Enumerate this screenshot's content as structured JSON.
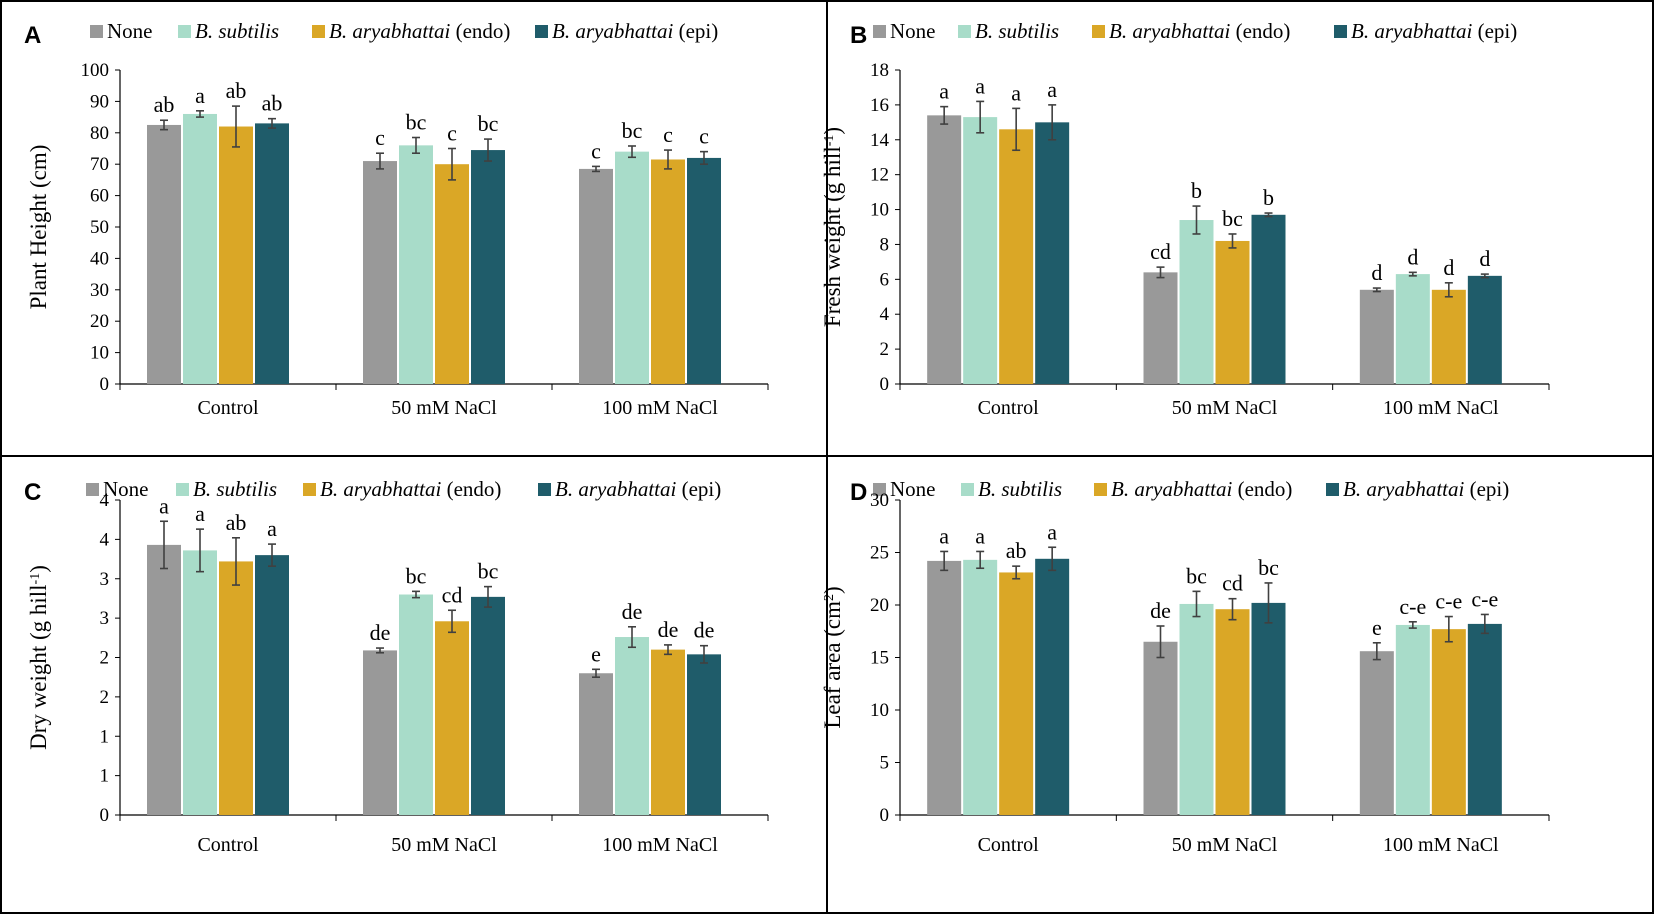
{
  "colors": {
    "None": "#999999",
    "B. subtilis": "#a8dcc9",
    "B. aryabhattai (endo)": "#daa726",
    "B. aryabhattai (epi)": "#1f5c6a"
  },
  "legend": [
    {
      "species": "None",
      "suffix": ""
    },
    {
      "species": "B. subtilis",
      "suffix": ""
    },
    {
      "species": "B. aryabhattai",
      "suffix": " (endo)"
    },
    {
      "species": "B. aryabhattai",
      "suffix": " (epi)"
    }
  ],
  "chart_data": [
    {
      "panel": "A",
      "type": "bar",
      "ylabel": "Plant Height (cm)",
      "ylim": [
        0,
        100
      ],
      "yticks": [
        0,
        10,
        20,
        30,
        40,
        50,
        60,
        70,
        80,
        90,
        100
      ],
      "ytick_labels": [
        "0",
        "10",
        "20",
        "30",
        "40",
        "50",
        "60",
        "70",
        "80",
        "90",
        "100"
      ],
      "categories": [
        "Control",
        "50 mM NaCl",
        "100 mM NaCl"
      ],
      "series": [
        {
          "name": "None",
          "values": [
            82.5,
            71.0,
            68.5
          ],
          "errors": [
            1.5,
            2.5,
            0.8
          ],
          "labels": [
            "ab",
            "c",
            "c"
          ]
        },
        {
          "name": "B. subtilis",
          "values": [
            86.0,
            76.0,
            74.0
          ],
          "errors": [
            1.0,
            2.5,
            1.8
          ],
          "labels": [
            "a",
            "bc",
            "bc"
          ]
        },
        {
          "name": "B. aryabhattai (endo)",
          "values": [
            82.0,
            70.0,
            71.5
          ],
          "errors": [
            6.5,
            5.0,
            3.0
          ],
          "labels": [
            "ab",
            "c",
            "c"
          ]
        },
        {
          "name": "B. aryabhattai (epi)",
          "values": [
            83.0,
            74.5,
            72.0
          ],
          "errors": [
            1.5,
            3.5,
            2.0
          ],
          "labels": [
            "ab",
            "bc",
            "c"
          ]
        }
      ]
    },
    {
      "panel": "B",
      "type": "bar",
      "ylabel": "Fresh weight (g hill",
      "ylabel_sup": "-1",
      "ylabel_end": ")",
      "ylim": [
        0,
        18
      ],
      "yticks": [
        0,
        2,
        4,
        6,
        8,
        10,
        12,
        14,
        16,
        18
      ],
      "ytick_labels": [
        "0",
        "2",
        "4",
        "6",
        "8",
        "10",
        "12",
        "14",
        "16",
        "18"
      ],
      "categories": [
        "Control",
        "50 mM NaCl",
        "100 mM NaCl"
      ],
      "series": [
        {
          "name": "None",
          "values": [
            15.4,
            6.4,
            5.4
          ],
          "errors": [
            0.5,
            0.3,
            0.1
          ],
          "labels": [
            "a",
            "cd",
            "d"
          ]
        },
        {
          "name": "B. subtilis",
          "values": [
            15.3,
            9.4,
            6.3
          ],
          "errors": [
            0.9,
            0.8,
            0.1
          ],
          "labels": [
            "a",
            "b",
            "d"
          ]
        },
        {
          "name": "B. aryabhattai (endo)",
          "values": [
            14.6,
            8.2,
            5.4
          ],
          "errors": [
            1.2,
            0.4,
            0.4
          ],
          "labels": [
            "a",
            "bc",
            "d"
          ]
        },
        {
          "name": "B. aryabhattai (epi)",
          "values": [
            15.0,
            9.7,
            6.2
          ],
          "errors": [
            1.0,
            0.1,
            0.1
          ],
          "labels": [
            "a",
            "b",
            "d"
          ]
        }
      ]
    },
    {
      "panel": "C",
      "type": "bar",
      "ylabel": "Dry weight (g hill",
      "ylabel_sup": "-1",
      "ylabel_end": ")",
      "ylim": [
        0,
        4
      ],
      "yticks": [
        0,
        0.5,
        1,
        1.5,
        2,
        2.5,
        3,
        3.5,
        4
      ],
      "ytick_labels": [
        "0",
        "1",
        "1",
        "2",
        "2",
        "3",
        "3",
        "4",
        "4"
      ],
      "categories": [
        "Control",
        "50 mM NaCl",
        "100 mM NaCl"
      ],
      "series": [
        {
          "name": "None",
          "values": [
            3.43,
            2.09,
            1.8
          ],
          "errors": [
            0.3,
            0.03,
            0.05
          ],
          "labels": [
            "a",
            "de",
            "e"
          ]
        },
        {
          "name": "B. subtilis",
          "values": [
            3.36,
            2.8,
            2.26
          ],
          "errors": [
            0.27,
            0.04,
            0.13
          ],
          "labels": [
            "a",
            "bc",
            "de"
          ]
        },
        {
          "name": "B. aryabhattai (endo)",
          "values": [
            3.22,
            2.46,
            2.1
          ],
          "errors": [
            0.3,
            0.14,
            0.06
          ],
          "labels": [
            "ab",
            "cd",
            "de"
          ]
        },
        {
          "name": "B. aryabhattai (epi)",
          "values": [
            3.3,
            2.77,
            2.04
          ],
          "errors": [
            0.14,
            0.13,
            0.11
          ],
          "labels": [
            "a",
            "bc",
            "de"
          ]
        }
      ]
    },
    {
      "panel": "D",
      "type": "bar",
      "ylabel": "Leaf area (cm",
      "ylabel_sup": "2",
      "ylabel_end": ")",
      "ylim": [
        0,
        30
      ],
      "yticks": [
        0,
        5,
        10,
        15,
        20,
        25,
        30
      ],
      "ytick_labels": [
        "0",
        "5",
        "10",
        "15",
        "20",
        "25",
        "30"
      ],
      "categories": [
        "Control",
        "50 mM NaCl",
        "100 mM NaCl"
      ],
      "series": [
        {
          "name": "None",
          "values": [
            24.2,
            16.5,
            15.6
          ],
          "errors": [
            0.9,
            1.5,
            0.8
          ],
          "labels": [
            "a",
            "de",
            "e"
          ]
        },
        {
          "name": "B. subtilis",
          "values": [
            24.3,
            20.1,
            18.1
          ],
          "errors": [
            0.8,
            1.2,
            0.3
          ],
          "labels": [
            "a",
            "bc",
            "c-e"
          ]
        },
        {
          "name": "B. aryabhattai (endo)",
          "values": [
            23.1,
            19.6,
            17.7
          ],
          "errors": [
            0.6,
            1.0,
            1.2
          ],
          "labels": [
            "ab",
            "cd",
            "c-e"
          ]
        },
        {
          "name": "B. aryabhattai (epi)",
          "values": [
            24.4,
            20.2,
            18.2
          ],
          "errors": [
            1.1,
            1.9,
            0.9
          ],
          "labels": [
            "a",
            "bc",
            "c-e"
          ]
        }
      ]
    }
  ]
}
